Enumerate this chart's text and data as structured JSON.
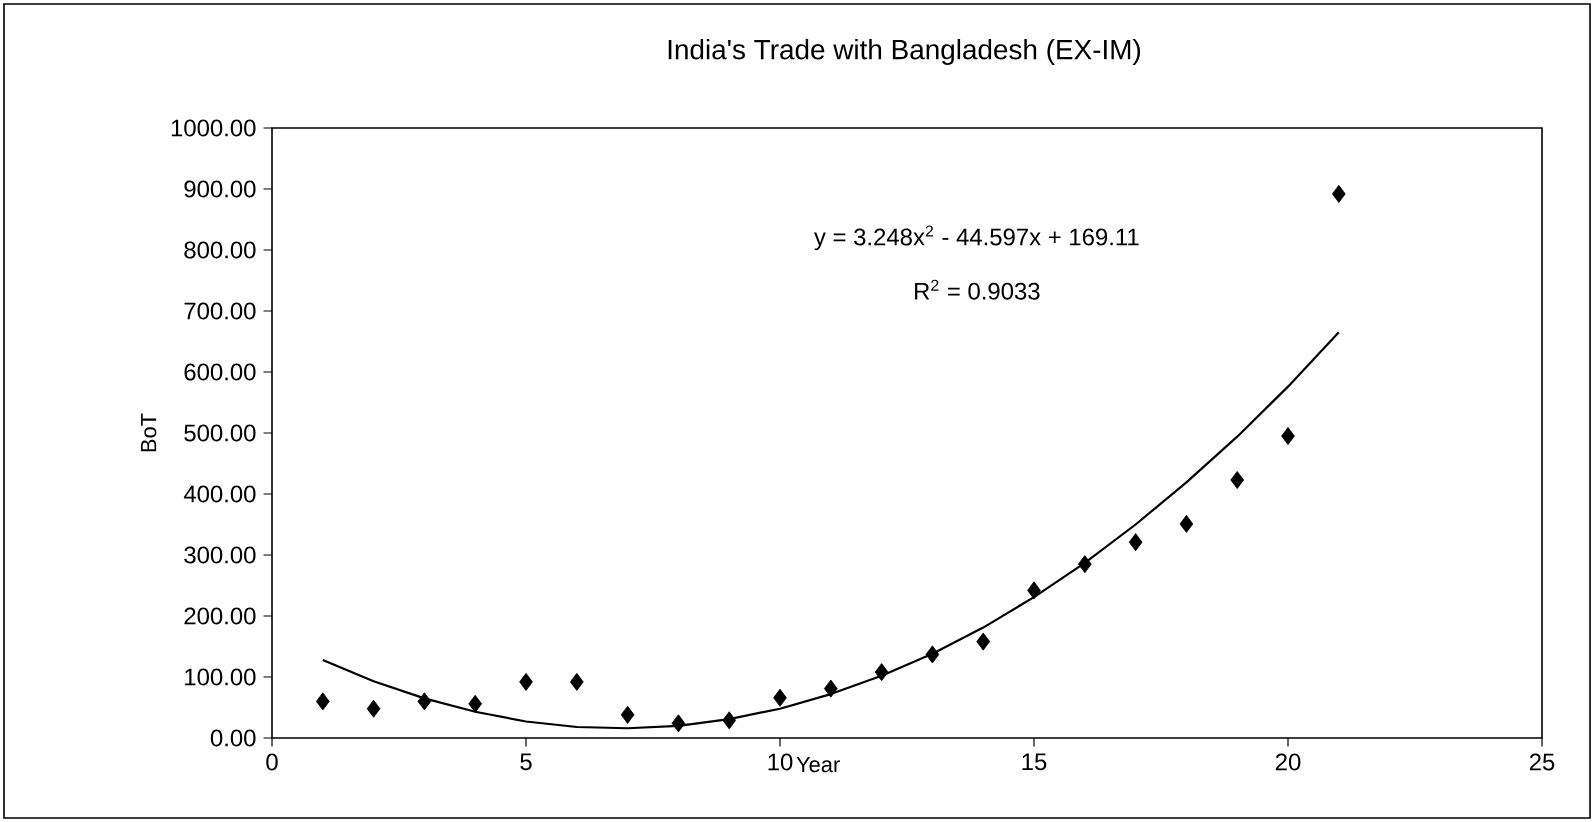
{
  "chart_data": {
    "type": "scatter",
    "title": "India's Trade with Bangladesh (EX-IM)",
    "xlabel": "Year",
    "ylabel": "BoT",
    "x": [
      1,
      2,
      3,
      4,
      5,
      6,
      7,
      8,
      9,
      10,
      11,
      12,
      13,
      14,
      15,
      16,
      17,
      18,
      19,
      20,
      21
    ],
    "series": [
      {
        "color": "#000000",
        "marker": "diamond",
        "values": [
          60,
          48,
          60,
          56,
          92,
          92,
          38,
          24,
          29,
          66,
          81,
          108,
          137,
          158,
          242,
          285,
          321,
          351,
          423,
          495,
          892
        ]
      },
      {
        "type": "line",
        "color": "#000000",
        "marker": "none",
        "line_style": "solid",
        "values": [
          128,
          93,
          65,
          43,
          27,
          18,
          16,
          20,
          31,
          48,
          72,
          102,
          138,
          181,
          231,
          287,
          350,
          419,
          494,
          576,
          665
        ]
      }
    ],
    "xlim": [
      0,
      25
    ],
    "xticks": [
      0,
      5,
      10,
      15,
      20,
      25
    ],
    "ylim": [
      0,
      1000
    ],
    "yticks": [
      {
        "value": 0,
        "label": "0.00"
      },
      {
        "value": 100,
        "label": "100.00"
      },
      {
        "value": 200,
        "label": "200.00"
      },
      {
        "value": 300,
        "label": "300.00"
      },
      {
        "value": 400,
        "label": "400.00"
      },
      {
        "value": 500,
        "label": "500.00"
      },
      {
        "value": 600,
        "label": "600.00"
      },
      {
        "value": 700,
        "label": "700.00"
      },
      {
        "value": 800,
        "label": "800.00"
      },
      {
        "value": 900,
        "label": "900.00"
      },
      {
        "value": 1000,
        "label": "1000.00"
      }
    ],
    "annotations": [
      "y = 3.248x$^{2}$ - 44.597x + 169.11",
      "R$^{2}$ = 0.9033"
    ],
    "grid": false
  }
}
